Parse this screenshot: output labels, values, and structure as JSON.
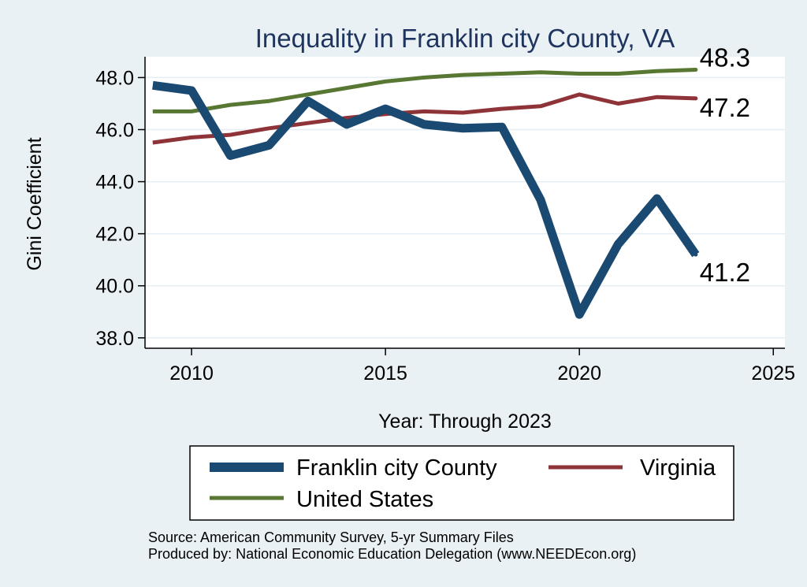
{
  "chart_data": {
    "type": "line",
    "title": "Inequality in Franklin city County, VA",
    "xlabel": "Year: Through 2023",
    "ylabel": "Gini Coefficient",
    "xlim": [
      2008.8,
      2025.3
    ],
    "ylim": [
      37.6,
      48.8
    ],
    "x_ticks": [
      2010,
      2015,
      2020,
      2025
    ],
    "y_ticks": [
      38.0,
      40.0,
      42.0,
      44.0,
      46.0,
      48.0
    ],
    "y_tick_labels": [
      "38.0",
      "40.0",
      "42.0",
      "44.0",
      "46.0",
      "48.0"
    ],
    "grid": true,
    "legend_position": "bottom",
    "series": [
      {
        "name": "Franklin city County",
        "color": "#1a4972",
        "x": [
          2009,
          2010,
          2011,
          2012,
          2013,
          2014,
          2015,
          2016,
          2017,
          2018,
          2019,
          2020,
          2021,
          2022,
          2023
        ],
        "values": [
          47.7,
          47.5,
          45.0,
          45.4,
          47.1,
          46.2,
          46.8,
          46.2,
          46.05,
          46.1,
          43.3,
          38.9,
          41.6,
          43.35,
          41.2
        ],
        "end_label": "41.2"
      },
      {
        "name": "Virginia",
        "color": "#8e3438",
        "x": [
          2009,
          2010,
          2011,
          2012,
          2013,
          2014,
          2015,
          2016,
          2017,
          2018,
          2019,
          2020,
          2021,
          2022,
          2023
        ],
        "values": [
          45.5,
          45.7,
          45.8,
          46.05,
          46.25,
          46.45,
          46.6,
          46.7,
          46.65,
          46.8,
          46.9,
          47.35,
          47.0,
          47.25,
          47.2
        ],
        "end_label": "47.2"
      },
      {
        "name": "United States",
        "color": "#577733",
        "x": [
          2009,
          2010,
          2011,
          2012,
          2013,
          2014,
          2015,
          2016,
          2017,
          2018,
          2019,
          2020,
          2021,
          2022,
          2023
        ],
        "values": [
          46.7,
          46.7,
          46.95,
          47.1,
          47.35,
          47.6,
          47.85,
          48.0,
          48.1,
          48.15,
          48.2,
          48.15,
          48.15,
          48.25,
          48.3
        ],
        "end_label": "48.3"
      }
    ]
  },
  "legend": {
    "items": [
      "Franklin city County",
      "Virginia",
      "United States"
    ]
  },
  "notes": {
    "source": "Source: American Community Survey, 5-yr Summary Files",
    "produced_by": "Produced by: National Economic Education Delegation (www.NEEDEcon.org)"
  }
}
